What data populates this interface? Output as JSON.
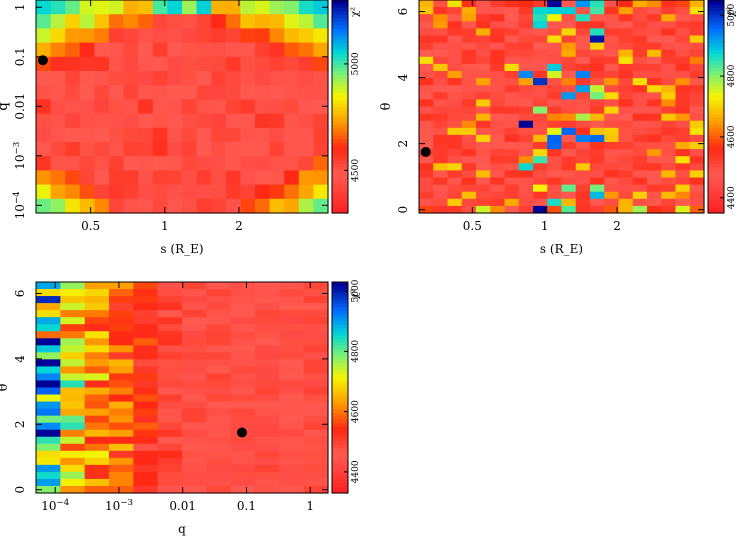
{
  "chart_data": [
    {
      "type": "heatmap",
      "title": "",
      "xlabel": "s (R_E)",
      "ylabel": "q",
      "x": {
        "scale": "log",
        "range": [
          0.3,
          4.6
        ],
        "ticks": [
          0.5,
          1,
          2
        ],
        "tick_labels": [
          "0.5",
          "1",
          "2"
        ]
      },
      "y": {
        "scale": "log",
        "range": [
          7e-05,
          1.4
        ],
        "ticks": [
          0.0001,
          0.001,
          0.01,
          0.1,
          1
        ],
        "tick_labels": [
          "10^-4",
          "10^-3",
          "0.01",
          "0.1",
          "1"
        ]
      },
      "nx": 20,
      "ny": 15,
      "colorbar": {
        "label": "χ²",
        "range": [
          4300,
          5300
        ],
        "ticks": [
          4500,
          5000
        ],
        "tick_labels": [
          "4500",
          "5000"
        ]
      },
      "best_fit": {
        "x": 0.32,
        "y": 0.085
      },
      "pattern": "v"
    },
    {
      "type": "heatmap",
      "title": "",
      "xlabel": "s (R_E)",
      "ylabel": "θ",
      "x": {
        "scale": "log",
        "range": [
          0.3,
          4.6
        ],
        "ticks": [
          0.5,
          1,
          2
        ],
        "tick_labels": [
          "0.5",
          "1",
          "2"
        ]
      },
      "y": {
        "scale": "linear",
        "range": [
          -0.1,
          6.35
        ],
        "ticks": [
          0,
          2,
          4,
          6
        ],
        "tick_labels": [
          "0",
          "2",
          "4",
          "6"
        ]
      },
      "nx": 20,
      "ny": 30,
      "colorbar": {
        "label": "χ²",
        "range": [
          4350,
          5050
        ],
        "ticks": [
          4400,
          4600,
          4800,
          5000
        ],
        "tick_labels": [
          "4400",
          "4600",
          "4800",
          "5000"
        ]
      },
      "best_fit": {
        "x": 0.32,
        "y": 1.75
      },
      "pattern": "theta"
    },
    {
      "type": "heatmap",
      "title": "",
      "xlabel": "q",
      "ylabel": "θ",
      "x": {
        "scale": "log",
        "range": [
          5e-05,
          1.9
        ],
        "ticks": [
          0.0001,
          0.001,
          0.01,
          0.1,
          1
        ],
        "tick_labels": [
          "10^-4",
          "10^-3",
          "0.01",
          "0.1",
          "1"
        ]
      },
      "y": {
        "scale": "linear",
        "range": [
          -0.1,
          6.35
        ],
        "ticks": [
          0,
          2,
          4,
          6
        ],
        "tick_labels": [
          "0",
          "2",
          "4",
          "6"
        ]
      },
      "nx": 12,
      "ny": 30,
      "colorbar": {
        "label": "χ²",
        "range": [
          4330,
          5030
        ],
        "ticks": [
          4400,
          4600,
          4800,
          5000
        ],
        "tick_labels": [
          "4400",
          "4600",
          "4800",
          "5000"
        ]
      },
      "best_fit": {
        "x": 0.085,
        "y": 1.75
      },
      "pattern": "q"
    }
  ]
}
